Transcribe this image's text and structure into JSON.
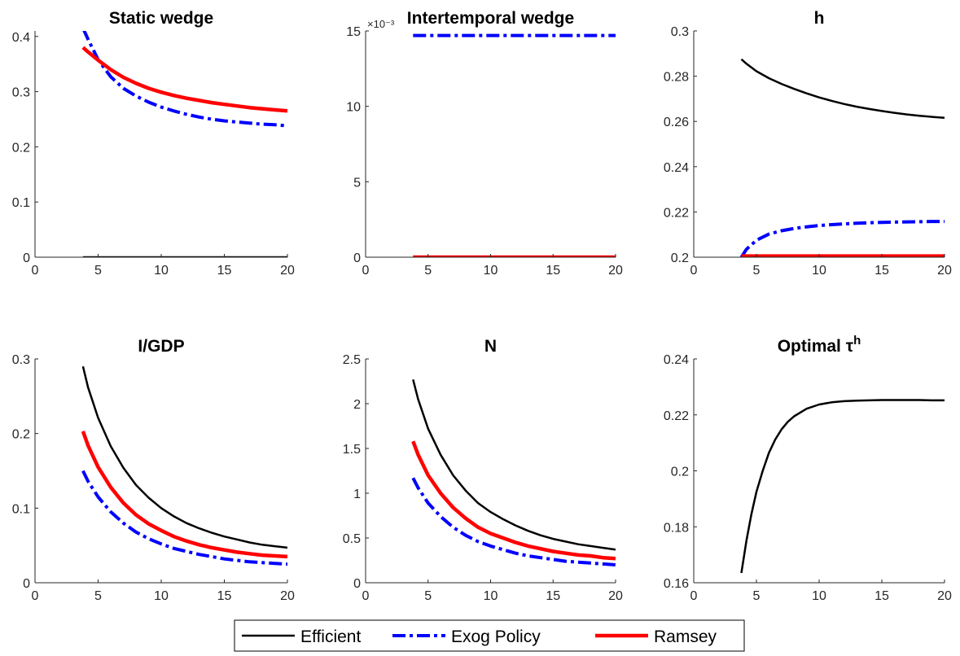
{
  "chart_data": [
    {
      "type": "line",
      "title": "Static wedge",
      "xlim": [
        0,
        20
      ],
      "ylim": [
        0,
        0.41
      ],
      "xticks": [
        "0",
        "5",
        "10",
        "15",
        "20"
      ],
      "yticks": [
        "0",
        "0.1",
        "0.2",
        "0.3",
        "0.4"
      ],
      "series": [
        {
          "name": "Efficient",
          "color": "#000000",
          "style": "solid",
          "x": [
            3.8,
            20
          ],
          "y": [
            0,
            0
          ]
        },
        {
          "name": "Exog Policy",
          "color": "#0000ff",
          "style": "dashdot",
          "x": [
            3.8,
            4.2,
            5,
            6,
            7,
            8,
            9,
            10,
            11,
            12,
            13,
            14,
            15,
            16,
            17,
            18,
            19,
            20
          ],
          "y": [
            0.415,
            0.395,
            0.358,
            0.327,
            0.306,
            0.292,
            0.281,
            0.272,
            0.265,
            0.259,
            0.254,
            0.25,
            0.247,
            0.245,
            0.243,
            0.241,
            0.24,
            0.238
          ]
        },
        {
          "name": "Ramsey",
          "color": "#ff0000",
          "style": "solid",
          "x": [
            3.8,
            4.2,
            5,
            6,
            7,
            8,
            9,
            10,
            11,
            12,
            13,
            14,
            15,
            16,
            17,
            18,
            19,
            20
          ],
          "y": [
            0.38,
            0.372,
            0.357,
            0.34,
            0.326,
            0.315,
            0.306,
            0.299,
            0.293,
            0.288,
            0.284,
            0.28,
            0.277,
            0.274,
            0.271,
            0.269,
            0.267,
            0.265
          ]
        }
      ]
    },
    {
      "type": "line",
      "title": "Intertemporal wedge",
      "xlim": [
        0,
        20
      ],
      "ylim": [
        0,
        15
      ],
      "xticks": [
        "0",
        "5",
        "10",
        "15",
        "20"
      ],
      "yticks": [
        "0",
        "5",
        "10",
        "15"
      ],
      "y_exponent_label": "×10⁻³",
      "series": [
        {
          "name": "Efficient",
          "color": "#000000",
          "style": "solid",
          "x": [
            3.8,
            20
          ],
          "y": [
            0,
            0
          ]
        },
        {
          "name": "Exog Policy",
          "color": "#0000ff",
          "style": "dashdot",
          "x": [
            3.8,
            20
          ],
          "y": [
            14.7,
            14.7
          ]
        },
        {
          "name": "Ramsey",
          "color": "#ff0000",
          "style": "solid",
          "x": [
            3.8,
            20
          ],
          "y": [
            0,
            0
          ]
        }
      ]
    },
    {
      "type": "line",
      "title": "h",
      "xlim": [
        0,
        20
      ],
      "ylim": [
        0.2,
        0.3
      ],
      "xticks": [
        "0",
        "5",
        "10",
        "15",
        "20"
      ],
      "yticks": [
        "0.2",
        "0.22",
        "0.24",
        "0.26",
        "0.28",
        "0.3"
      ],
      "series": [
        {
          "name": "Efficient",
          "color": "#000000",
          "style": "solid",
          "x": [
            3.8,
            4.2,
            5,
            6,
            7,
            8,
            9,
            10,
            11,
            12,
            13,
            14,
            15,
            16,
            17,
            18,
            19,
            20
          ],
          "y": [
            0.2875,
            0.2855,
            0.2822,
            0.2791,
            0.2766,
            0.2744,
            0.2724,
            0.2706,
            0.2691,
            0.2677,
            0.2665,
            0.2655,
            0.2646,
            0.2638,
            0.2631,
            0.2625,
            0.262,
            0.2616
          ]
        },
        {
          "name": "Exog Policy",
          "color": "#0000ff",
          "style": "dashdot",
          "x": [
            3.8,
            4.2,
            5,
            6,
            7,
            8,
            9,
            10,
            11,
            12,
            13,
            14,
            15,
            16,
            17,
            18,
            19,
            20
          ],
          "y": [
            0.2,
            0.2035,
            0.2075,
            0.2102,
            0.2117,
            0.2127,
            0.2134,
            0.214,
            0.2144,
            0.2147,
            0.215,
            0.2152,
            0.2154,
            0.2155,
            0.2156,
            0.2157,
            0.2158,
            0.2158
          ]
        },
        {
          "name": "Ramsey",
          "color": "#ff0000",
          "style": "solid",
          "x": [
            3.8,
            20
          ],
          "y": [
            0.2005,
            0.2005
          ]
        }
      ]
    },
    {
      "type": "line",
      "title": "I/GDP",
      "xlim": [
        0,
        20
      ],
      "ylim": [
        0,
        0.3
      ],
      "xticks": [
        "0",
        "5",
        "10",
        "15",
        "20"
      ],
      "yticks": [
        "0",
        "0.1",
        "0.2",
        "0.3"
      ],
      "series": [
        {
          "name": "Efficient",
          "color": "#000000",
          "style": "solid",
          "x": [
            3.8,
            4.2,
            5,
            6,
            7,
            8,
            9,
            10,
            11,
            12,
            13,
            14,
            15,
            16,
            17,
            18,
            19,
            20
          ],
          "y": [
            0.29,
            0.262,
            0.221,
            0.183,
            0.154,
            0.131,
            0.114,
            0.1,
            0.089,
            0.08,
            0.073,
            0.067,
            0.062,
            0.058,
            0.054,
            0.051,
            0.049,
            0.047
          ]
        },
        {
          "name": "Exog Policy",
          "color": "#0000ff",
          "style": "dashdot",
          "x": [
            3.8,
            4.2,
            5,
            6,
            7,
            8,
            9,
            10,
            11,
            12,
            13,
            14,
            15,
            16,
            17,
            18,
            19,
            20
          ],
          "y": [
            0.15,
            0.136,
            0.115,
            0.095,
            0.08,
            0.068,
            0.059,
            0.052,
            0.046,
            0.042,
            0.038,
            0.035,
            0.032,
            0.03,
            0.028,
            0.027,
            0.026,
            0.025
          ]
        },
        {
          "name": "Ramsey",
          "color": "#ff0000",
          "style": "solid",
          "x": [
            3.8,
            4.2,
            5,
            6,
            7,
            8,
            9,
            10,
            11,
            12,
            13,
            14,
            15,
            16,
            17,
            18,
            19,
            20
          ],
          "y": [
            0.203,
            0.184,
            0.155,
            0.128,
            0.107,
            0.091,
            0.079,
            0.07,
            0.062,
            0.056,
            0.051,
            0.047,
            0.044,
            0.041,
            0.039,
            0.037,
            0.036,
            0.035
          ]
        }
      ]
    },
    {
      "type": "line",
      "title": "N",
      "xlim": [
        0,
        20
      ],
      "ylim": [
        0,
        2.5
      ],
      "xticks": [
        "0",
        "5",
        "10",
        "15",
        "20"
      ],
      "yticks": [
        "0",
        "0.5",
        "1",
        "1.5",
        "2",
        "2.5"
      ],
      "series": [
        {
          "name": "Efficient",
          "color": "#000000",
          "style": "solid",
          "x": [
            3.8,
            4.2,
            5,
            6,
            7,
            8,
            9,
            10,
            11,
            12,
            13,
            14,
            15,
            16,
            17,
            18,
            19,
            20
          ],
          "y": [
            2.27,
            2.05,
            1.72,
            1.43,
            1.2,
            1.03,
            0.89,
            0.79,
            0.71,
            0.64,
            0.58,
            0.53,
            0.49,
            0.46,
            0.43,
            0.41,
            0.39,
            0.37
          ]
        },
        {
          "name": "Exog Policy",
          "color": "#0000ff",
          "style": "dashdot",
          "x": [
            3.8,
            4.2,
            5,
            6,
            7,
            8,
            9,
            10,
            11,
            12,
            13,
            14,
            15,
            16,
            17,
            18,
            19,
            20
          ],
          "y": [
            1.17,
            1.06,
            0.89,
            0.74,
            0.62,
            0.53,
            0.46,
            0.41,
            0.37,
            0.33,
            0.3,
            0.28,
            0.26,
            0.24,
            0.23,
            0.22,
            0.21,
            0.2
          ]
        },
        {
          "name": "Ramsey",
          "color": "#ff0000",
          "style": "solid",
          "x": [
            3.8,
            4.2,
            5,
            6,
            7,
            8,
            9,
            10,
            11,
            12,
            13,
            14,
            15,
            16,
            17,
            18,
            19,
            20
          ],
          "y": [
            1.58,
            1.43,
            1.2,
            1.0,
            0.84,
            0.72,
            0.62,
            0.55,
            0.5,
            0.45,
            0.41,
            0.38,
            0.35,
            0.33,
            0.31,
            0.3,
            0.28,
            0.27
          ]
        }
      ]
    },
    {
      "type": "line",
      "title": "Optimal τ",
      "title_superscript": "h",
      "xlim": [
        0,
        20
      ],
      "ylim": [
        0.16,
        0.24
      ],
      "xticks": [
        "0",
        "5",
        "10",
        "15",
        "20"
      ],
      "yticks": [
        "0.16",
        "0.18",
        "0.2",
        "0.22",
        "0.24"
      ],
      "series": [
        {
          "name": "Efficient",
          "color": "#000000",
          "style": "solid",
          "x": [
            3.8,
            4.2,
            4.6,
            5,
            5.5,
            6,
            6.5,
            7,
            7.5,
            8,
            9,
            10,
            11,
            12,
            13,
            14,
            15,
            16,
            17,
            18,
            19,
            20
          ],
          "y": [
            0.1635,
            0.175,
            0.1845,
            0.1925,
            0.2,
            0.2065,
            0.2112,
            0.2148,
            0.2175,
            0.2195,
            0.2222,
            0.2237,
            0.2245,
            0.2249,
            0.2251,
            0.2252,
            0.2253,
            0.2253,
            0.2253,
            0.2253,
            0.2252,
            0.2252
          ]
        }
      ]
    }
  ],
  "legend": {
    "placement": "bottom-center",
    "entries": [
      {
        "label": "Efficient",
        "color": "#000000",
        "style": "solid"
      },
      {
        "label": "Exog Policy",
        "color": "#0000ff",
        "style": "dashdot"
      },
      {
        "label": "Ramsey",
        "color": "#ff0000",
        "style": "solid"
      }
    ]
  }
}
